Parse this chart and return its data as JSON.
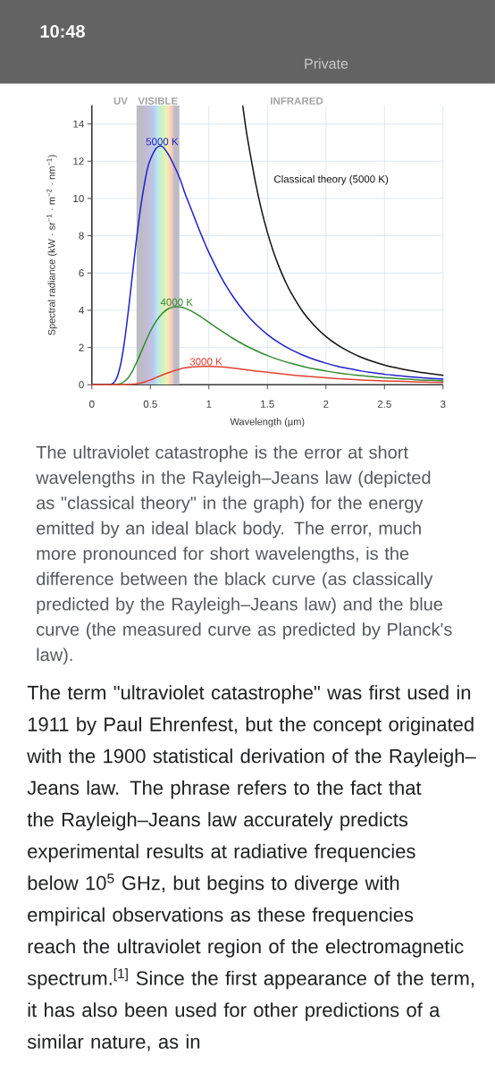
{
  "chart_data": {
    "type": "line",
    "xlabel": "Wavelength (µm)",
    "ylabel": "Spectral radiance (kW · sr$^{−1}$ · m$^{−2}$ · nm$^{−1}$)",
    "xlim": [
      0,
      3
    ],
    "xticks": [
      0,
      0.5,
      1,
      1.5,
      2,
      2.5,
      3
    ],
    "ylim": [
      0,
      15
    ],
    "yticks": [
      0,
      2,
      4,
      6,
      8,
      10,
      12,
      14
    ],
    "grid": true,
    "marker": "none",
    "line_style": "solid",
    "series": [
      {
        "name": "5000 K",
        "color": "#2020cc",
        "x": [
          0,
          0.1,
          0.15,
          0.175,
          0.2,
          0.225,
          0.25,
          0.275,
          0.3,
          0.325,
          0.35,
          0.375,
          0.4,
          0.425,
          0.45,
          0.475,
          0.5,
          0.55,
          0.6,
          0.65,
          0.7,
          0.75,
          0.8,
          0.85,
          0.9,
          0.95,
          1,
          1.1,
          1.2,
          1.3,
          1.4,
          1.5,
          1.6,
          1.7,
          1.8,
          1.9,
          2,
          2.1,
          2.2,
          2.3,
          2.4,
          2.5,
          2.6,
          2.7,
          2.8,
          2.9,
          3
        ],
        "values": [
          0,
          0,
          0.01,
          0.05,
          0.21,
          0.58,
          1.22,
          2.16,
          3.35,
          4.69,
          6.09,
          7.47,
          8.74,
          9.86,
          10.8,
          11.6,
          12.1,
          12.7,
          12.8,
          12.4,
          11.8,
          11.1,
          10.2,
          9.41,
          8.59,
          7.82,
          7.1,
          5.83,
          4.79,
          3.94,
          3.25,
          2.7,
          2.25,
          1.89,
          1.6,
          1.36,
          1.16,
          0.99,
          0.86,
          0.74,
          0.65,
          0.56,
          0.5,
          0.44,
          0.39,
          0.34,
          0.3
        ]
      },
      {
        "name": "4000 K",
        "color": "#338a2e",
        "x": [
          0,
          0.15,
          0.2,
          0.25,
          0.3,
          0.35,
          0.4,
          0.45,
          0.5,
          0.55,
          0.6,
          0.65,
          0.7,
          0.75,
          0.8,
          0.85,
          0.9,
          0.95,
          1,
          1.1,
          1.2,
          1.3,
          1.4,
          1.5,
          1.6,
          1.7,
          1.8,
          1.9,
          2,
          2.1,
          2.2,
          2.3,
          2.4,
          2.5,
          2.6,
          2.7,
          2.8,
          2.9,
          3
        ],
        "values": [
          0,
          0,
          0.01,
          0.07,
          0.3,
          0.78,
          1.45,
          2.18,
          2.87,
          3.42,
          3.82,
          4.07,
          4.18,
          4.18,
          4.1,
          3.96,
          3.78,
          3.57,
          3.35,
          2.92,
          2.51,
          2.15,
          1.84,
          1.57,
          1.34,
          1.15,
          0.99,
          0.85,
          0.74,
          0.64,
          0.56,
          0.49,
          0.43,
          0.38,
          0.34,
          0.3,
          0.26,
          0.24,
          0.21
        ]
      },
      {
        "name": "3000 K",
        "color": "#e2412f",
        "x": [
          0,
          0.25,
          0.3,
          0.35,
          0.4,
          0.45,
          0.5,
          0.55,
          0.6,
          0.65,
          0.7,
          0.75,
          0.8,
          0.85,
          0.9,
          0.95,
          1,
          1.1,
          1.2,
          1.3,
          1.4,
          1.5,
          1.6,
          1.7,
          1.8,
          1.9,
          2,
          2.1,
          2.2,
          2.3,
          2.4,
          2.5,
          2.6,
          2.7,
          2.8,
          2.9,
          3
        ],
        "values": [
          0,
          0,
          0.01,
          0.03,
          0.07,
          0.15,
          0.26,
          0.39,
          0.52,
          0.64,
          0.75,
          0.84,
          0.91,
          0.95,
          0.98,
          0.99,
          0.99,
          0.96,
          0.9,
          0.82,
          0.74,
          0.67,
          0.6,
          0.53,
          0.47,
          0.42,
          0.37,
          0.33,
          0.29,
          0.26,
          0.23,
          0.21,
          0.19,
          0.17,
          0.15,
          0.14,
          0.12
        ]
      },
      {
        "name": "Classical theory (5000 K)",
        "color": "#111111",
        "x": [
          1.29,
          1.32,
          1.35,
          1.4,
          1.45,
          1.5,
          1.55,
          1.6,
          1.65,
          1.7,
          1.8,
          1.9,
          2,
          2.1,
          2.2,
          2.3,
          2.4,
          2.5,
          2.6,
          2.7,
          2.8,
          2.9,
          3
        ],
        "values": [
          14.95,
          13.6,
          12.5,
          10.8,
          9.37,
          8.18,
          7.17,
          6.32,
          5.59,
          4.96,
          3.94,
          3.18,
          2.59,
          2.13,
          1.77,
          1.48,
          1.25,
          1.06,
          0.91,
          0.78,
          0.67,
          0.59,
          0.51
        ]
      }
    ],
    "bands": [
      {
        "axis": "x",
        "from": 0.38,
        "to": 0.75,
        "label": "VISIBLE",
        "color": "#bcbcc4"
      }
    ],
    "annotations": [
      "UV",
      "INFRARED",
      "10:48",
      "Private",
      "The ultraviolet catastrophe is the error at short wavelengths in the Rayleigh–Jeans law (depicted as \"classical theory\" in the graph) for the energy emitted by an ideal black body. The error, much more pronounced for short wavelengths, is the difference between the black curve (as classically predicted by the Rayleigh–Jeans law) and the blue curve (the measured curve as predicted by Planck's law).",
      "The term \"ultraviolet catastrophe\" was first used in 1911 by Paul Ehrenfest, but the concept originated with the 1900 statistical derivation of the Rayleigh–Jeans law. The phrase refers to the fact that the Rayleigh–Jeans law accurately predicts experimental results at radiative frequencies below 10$^{5}$ GHz, but begins to diverge with empirical observations as these frequencies reach the ultraviolet region of the electromagnetic spectrum.$^{[1]}$ Since the first appearance of the term, it has also been used for other predictions of a similar nature, as in"
    ]
  }
}
